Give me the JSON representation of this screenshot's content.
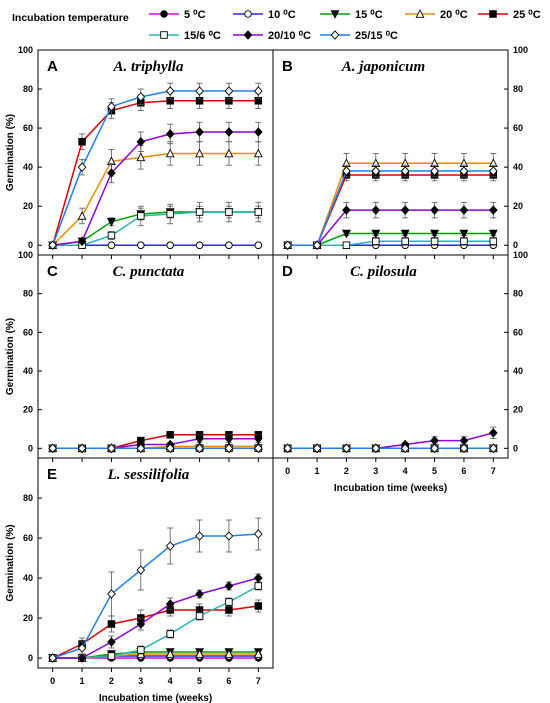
{
  "legend": {
    "title": "Incubation temperature",
    "entries": [
      {
        "label": "5 ⁰C",
        "color": "#e000e0",
        "marker": "circle",
        "fill": "#000000"
      },
      {
        "label": "10 ⁰C",
        "color": "#2a2ae0",
        "marker": "circle",
        "fill": "#ffffff"
      },
      {
        "label": "15 ⁰C",
        "color": "#00a000",
        "marker": "triangle-down",
        "fill": "#000000"
      },
      {
        "label": "20 ⁰C",
        "color": "#f08c00",
        "marker": "triangle-up",
        "fill": "#ffffff"
      },
      {
        "label": "25 ⁰C",
        "color": "#e00000",
        "marker": "square",
        "fill": "#000000"
      },
      {
        "label": "15/6 ⁰C",
        "color": "#20b8b0",
        "marker": "square",
        "fill": "#ffffff"
      },
      {
        "label": "20/10 ⁰C",
        "color": "#9000e0",
        "marker": "diamond",
        "fill": "#000000"
      },
      {
        "label": "25/15 ⁰C",
        "color": "#2080f0",
        "marker": "diamond",
        "fill": "#ffffff"
      }
    ]
  },
  "chart_data": [
    {
      "type": "line",
      "panel_letter": "A",
      "title": "A. triphylla",
      "xlabel": "",
      "ylabel": "Germination (%)",
      "x": [
        0,
        1,
        2,
        3,
        4,
        5,
        6,
        7
      ],
      "xlim": [
        -0.5,
        7.5
      ],
      "ylim": [
        -5,
        100
      ],
      "yticks": [
        0,
        20,
        40,
        60,
        80,
        100
      ],
      "ytick_side": "left",
      "show_xticks": false,
      "series": [
        {
          "name": "5 ⁰C",
          "values": [
            0,
            0,
            0,
            0,
            0,
            0,
            0,
            0
          ],
          "errors": [
            0,
            0,
            0,
            0,
            0,
            0,
            0,
            0
          ]
        },
        {
          "name": "10 ⁰C",
          "values": [
            0,
            0,
            0,
            0,
            0,
            0,
            0,
            0
          ],
          "errors": [
            0,
            0,
            0,
            0,
            0,
            0,
            0,
            0
          ]
        },
        {
          "name": "15 ⁰C",
          "values": [
            0,
            2,
            12,
            16,
            17,
            17,
            17,
            17
          ],
          "errors": [
            0,
            1,
            2,
            3,
            3,
            3,
            3,
            3
          ]
        },
        {
          "name": "20 ⁰C",
          "values": [
            0,
            15,
            43,
            45,
            47,
            47,
            47,
            47
          ],
          "errors": [
            0,
            4,
            6,
            6,
            6,
            6,
            6,
            6
          ]
        },
        {
          "name": "25 ⁰C",
          "values": [
            0,
            53,
            69,
            73,
            74,
            74,
            74,
            74
          ],
          "errors": [
            0,
            4,
            4,
            4,
            4,
            4,
            4,
            4
          ]
        },
        {
          "name": "15/6 ⁰C",
          "values": [
            0,
            0,
            5,
            15,
            16,
            17,
            17,
            17
          ],
          "errors": [
            0,
            0,
            2,
            5,
            5,
            5,
            5,
            5
          ]
        },
        {
          "name": "20/10 ⁰C",
          "values": [
            0,
            2,
            37,
            53,
            57,
            58,
            58,
            58
          ],
          "errors": [
            0,
            1,
            5,
            5,
            5,
            5,
            5,
            5
          ]
        },
        {
          "name": "25/15 ⁰C",
          "values": [
            0,
            40,
            71,
            76,
            79,
            79,
            79,
            79
          ],
          "errors": [
            0,
            4,
            4,
            4,
            4,
            4,
            4,
            4
          ]
        }
      ]
    },
    {
      "type": "line",
      "panel_letter": "B",
      "title": "A. japonicum",
      "xlabel": "",
      "ylabel": "",
      "x": [
        0,
        1,
        2,
        3,
        4,
        5,
        6,
        7
      ],
      "xlim": [
        -0.5,
        7.5
      ],
      "ylim": [
        -5,
        100
      ],
      "yticks": [
        0,
        20,
        40,
        60,
        80,
        100
      ],
      "ytick_side": "right",
      "show_xticks": false,
      "series": [
        {
          "name": "5 ⁰C",
          "values": [
            0,
            0,
            0,
            0,
            0,
            0,
            0,
            0
          ],
          "errors": [
            0,
            0,
            0,
            0,
            0,
            0,
            0,
            0
          ]
        },
        {
          "name": "10 ⁰C",
          "values": [
            0,
            0,
            0,
            0,
            0,
            0,
            0,
            0
          ],
          "errors": [
            0,
            0,
            0,
            0,
            0,
            0,
            0,
            0
          ]
        },
        {
          "name": "15 ⁰C",
          "values": [
            0,
            0,
            6,
            6,
            6,
            6,
            6,
            6
          ],
          "errors": [
            0,
            0,
            1,
            1,
            1,
            1,
            1,
            1
          ]
        },
        {
          "name": "20 ⁰C",
          "values": [
            0,
            0,
            42,
            42,
            42,
            42,
            42,
            42
          ],
          "errors": [
            0,
            0,
            5,
            5,
            5,
            5,
            5,
            5
          ]
        },
        {
          "name": "25 ⁰C",
          "values": [
            0,
            0,
            36,
            36,
            36,
            36,
            36,
            36
          ],
          "errors": [
            0,
            0,
            3,
            3,
            3,
            3,
            3,
            3
          ]
        },
        {
          "name": "15/6 ⁰C",
          "values": [
            0,
            0,
            0,
            2,
            2,
            2,
            2,
            2
          ],
          "errors": [
            0,
            0,
            0,
            2,
            2,
            2,
            2,
            2
          ]
        },
        {
          "name": "20/10 ⁰C",
          "values": [
            0,
            0,
            18,
            18,
            18,
            18,
            18,
            18
          ],
          "errors": [
            0,
            0,
            4,
            4,
            4,
            4,
            4,
            4
          ]
        },
        {
          "name": "25/15 ⁰C",
          "values": [
            0,
            0,
            38,
            38,
            38,
            38,
            38,
            38
          ],
          "errors": [
            0,
            0,
            3,
            3,
            3,
            3,
            3,
            3
          ]
        }
      ]
    },
    {
      "type": "line",
      "panel_letter": "C",
      "title": "C. punctata",
      "xlabel": "",
      "ylabel": "Germination (%)",
      "x": [
        0,
        1,
        2,
        3,
        4,
        5,
        6,
        7
      ],
      "xlim": [
        -0.5,
        7.5
      ],
      "ylim": [
        -5,
        100
      ],
      "yticks": [
        0,
        20,
        40,
        60,
        80,
        100
      ],
      "ytick_side": "left",
      "show_xticks": false,
      "series": [
        {
          "name": "5 ⁰C",
          "values": [
            0,
            0,
            0,
            0,
            0,
            0,
            0,
            0
          ],
          "errors": [
            0,
            0,
            0,
            0,
            0,
            0,
            0,
            0
          ]
        },
        {
          "name": "10 ⁰C",
          "values": [
            0,
            0,
            0,
            0,
            0,
            0,
            0,
            0
          ],
          "errors": [
            0,
            0,
            0,
            0,
            0,
            0,
            0,
            0
          ]
        },
        {
          "name": "15 ⁰C",
          "values": [
            0,
            0,
            0,
            0,
            0,
            0,
            0,
            0
          ],
          "errors": [
            0,
            0,
            0,
            0,
            0,
            0,
            0,
            0
          ]
        },
        {
          "name": "20 ⁰C",
          "values": [
            0,
            0,
            0,
            0,
            1,
            1,
            1,
            1
          ],
          "errors": [
            0,
            0,
            0,
            0,
            1,
            1,
            1,
            1
          ]
        },
        {
          "name": "25 ⁰C",
          "values": [
            0,
            0,
            0,
            4,
            7,
            7,
            7,
            7
          ],
          "errors": [
            0,
            0,
            0,
            1,
            1,
            1,
            1,
            1
          ]
        },
        {
          "name": "15/6 ⁰C",
          "values": [
            0,
            0,
            0,
            0,
            0,
            0,
            0,
            0
          ],
          "errors": [
            0,
            0,
            0,
            0,
            0,
            0,
            0,
            0
          ]
        },
        {
          "name": "20/10 ⁰C",
          "values": [
            0,
            0,
            0,
            2,
            2,
            5,
            5,
            5
          ],
          "errors": [
            0,
            0,
            0,
            1,
            1,
            2,
            2,
            2
          ]
        },
        {
          "name": "25/15 ⁰C",
          "values": [
            0,
            0,
            0,
            0,
            0,
            0,
            0,
            0
          ],
          "errors": [
            0,
            0,
            0,
            0,
            0,
            0,
            0,
            0
          ]
        }
      ]
    },
    {
      "type": "line",
      "panel_letter": "D",
      "title": "C. pilosula",
      "xlabel": "Incubation time (weeks)",
      "ylabel": "",
      "x": [
        0,
        1,
        2,
        3,
        4,
        5,
        6,
        7
      ],
      "xlim": [
        -0.5,
        7.5
      ],
      "ylim": [
        -5,
        100
      ],
      "yticks": [
        0,
        20,
        40,
        60,
        80,
        100
      ],
      "ytick_side": "right",
      "show_xticks": true,
      "series": [
        {
          "name": "5 ⁰C",
          "values": [
            0,
            0,
            0,
            0,
            0,
            0,
            0,
            0
          ],
          "errors": [
            0,
            0,
            0,
            0,
            0,
            0,
            0,
            0
          ]
        },
        {
          "name": "10 ⁰C",
          "values": [
            0,
            0,
            0,
            0,
            0,
            0,
            0,
            0
          ],
          "errors": [
            0,
            0,
            0,
            0,
            0,
            0,
            0,
            0
          ]
        },
        {
          "name": "15 ⁰C",
          "values": [
            0,
            0,
            0,
            0,
            0,
            0,
            0,
            0
          ],
          "errors": [
            0,
            0,
            0,
            0,
            0,
            0,
            0,
            0
          ]
        },
        {
          "name": "20 ⁰C",
          "values": [
            0,
            0,
            0,
            0,
            0,
            0,
            0,
            0
          ],
          "errors": [
            0,
            0,
            0,
            0,
            0,
            0,
            0,
            0
          ]
        },
        {
          "name": "25 ⁰C",
          "values": [
            0,
            0,
            0,
            0,
            0,
            0,
            0,
            0
          ],
          "errors": [
            0,
            0,
            0,
            0,
            0,
            0,
            0,
            0
          ]
        },
        {
          "name": "15/6 ⁰C",
          "values": [
            0,
            0,
            0,
            0,
            0,
            0,
            0,
            0
          ],
          "errors": [
            0,
            0,
            0,
            0,
            0,
            0,
            0,
            0
          ]
        },
        {
          "name": "20/10 ⁰C",
          "values": [
            0,
            0,
            0,
            0,
            2,
            4,
            4,
            8
          ],
          "errors": [
            0,
            0,
            0,
            0,
            1,
            2,
            2,
            3
          ]
        },
        {
          "name": "25/15 ⁰C",
          "values": [
            0,
            0,
            0,
            0,
            0,
            0,
            0,
            0
          ],
          "errors": [
            0,
            0,
            0,
            0,
            0,
            0,
            0,
            0
          ]
        }
      ]
    },
    {
      "type": "line",
      "panel_letter": "E",
      "title": "L. sessilifolia",
      "xlabel": "Incubation time (weeks)",
      "ylabel": "Germination (%)",
      "x": [
        0,
        1,
        2,
        3,
        4,
        5,
        6,
        7
      ],
      "xlim": [
        -0.5,
        7.5
      ],
      "ylim": [
        -5,
        100
      ],
      "yticks": [
        0,
        20,
        40,
        60,
        80
      ],
      "ytick_side": "left",
      "show_xticks": true,
      "series": [
        {
          "name": "5 ⁰C",
          "values": [
            0,
            0,
            0,
            0,
            0,
            0,
            0,
            0
          ],
          "errors": [
            0,
            0,
            0,
            0,
            0,
            0,
            0,
            0
          ]
        },
        {
          "name": "10 ⁰C",
          "values": [
            0,
            0,
            1,
            1,
            1,
            1,
            1,
            1
          ],
          "errors": [
            0,
            0,
            1,
            1,
            1,
            1,
            1,
            1
          ]
        },
        {
          "name": "15 ⁰C",
          "values": [
            0,
            0,
            2,
            3,
            3,
            3,
            3,
            3
          ],
          "errors": [
            0,
            0,
            1,
            1,
            1,
            1,
            1,
            1
          ]
        },
        {
          "name": "20 ⁰C",
          "values": [
            0,
            0,
            1,
            2,
            2,
            2,
            2,
            2
          ],
          "errors": [
            0,
            0,
            1,
            1,
            1,
            1,
            1,
            1
          ]
        },
        {
          "name": "25 ⁰C",
          "values": [
            0,
            7,
            17,
            20,
            24,
            24,
            24,
            26
          ],
          "errors": [
            0,
            3,
            4,
            4,
            3,
            3,
            3,
            3
          ]
        },
        {
          "name": "15/6 ⁰C",
          "values": [
            0,
            0,
            1,
            4,
            12,
            21,
            28,
            36
          ],
          "errors": [
            0,
            0,
            1,
            2,
            2,
            2,
            2,
            2
          ]
        },
        {
          "name": "20/10 ⁰C",
          "values": [
            0,
            0,
            8,
            17,
            27,
            32,
            36,
            40
          ],
          "errors": [
            0,
            0,
            3,
            3,
            3,
            2,
            2,
            2
          ]
        },
        {
          "name": "25/15 ⁰C",
          "values": [
            0,
            5,
            32,
            44,
            56,
            61,
            61,
            62
          ],
          "errors": [
            0,
            3,
            11,
            10,
            9,
            8,
            8,
            8
          ]
        }
      ]
    }
  ]
}
